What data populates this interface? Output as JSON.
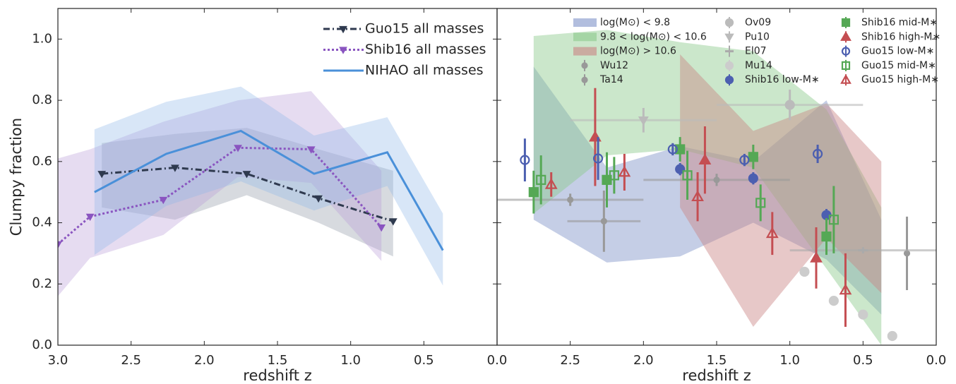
{
  "chart_data": [
    {
      "type": "line",
      "xlabel": "redshift z",
      "ylabel": "Clumpy fraction",
      "xlim": [
        3,
        0
      ],
      "ylim": [
        0,
        1.1
      ],
      "xticks": [
        {
          "value": 3,
          "label": "3.0"
        },
        {
          "value": 2.5,
          "label": "2.5"
        },
        {
          "value": 2,
          "label": "2.0"
        },
        {
          "value": 1.5,
          "label": "1.5"
        },
        {
          "value": 1,
          "label": "1.0"
        },
        {
          "value": 0.5,
          "label": "0.5"
        },
        {
          "value": 0,
          "label": "0.0"
        }
      ],
      "yticks": [
        {
          "value": 0,
          "label": "0.0"
        },
        0.2,
        0.4,
        0.6,
        0.8,
        {
          "value": 1,
          "label": "1.0"
        }
      ],
      "series": [
        {
          "name": "Guo15 all masses",
          "color": "#2f3a4f",
          "band_color": "#8b96a3",
          "marker": "v",
          "linestyle": "dashdot",
          "x": [
            2.7,
            2.2,
            1.71,
            1.22,
            0.71
          ],
          "values": [
            0.56,
            0.58,
            0.56,
            0.48,
            0.405
          ],
          "band_upper": [
            0.66,
            0.69,
            0.71,
            0.64,
            0.57
          ],
          "band_lower": [
            0.45,
            0.41,
            0.49,
            0.4,
            0.29
          ]
        },
        {
          "name": "Shib16 all masses",
          "color": "#8a55c0",
          "band_color": "#b79ad6",
          "marker": "v",
          "linestyle": "dotted",
          "x": [
            3.0,
            2.78,
            2.28,
            1.77,
            1.27,
            0.79
          ],
          "values": [
            0.33,
            0.42,
            0.475,
            0.645,
            0.64,
            0.385
          ],
          "band_upper": [
            0.61,
            0.64,
            0.73,
            0.8,
            0.83,
            0.57
          ],
          "band_lower": [
            0.16,
            0.285,
            0.36,
            0.55,
            0.53,
            0.275
          ]
        },
        {
          "name": "NIHAO all masses",
          "color": "#4a90d9",
          "band_color": "#8fb7e8",
          "marker": "none",
          "linestyle": "solid",
          "x": [
            2.75,
            2.26,
            1.75,
            1.25,
            0.75,
            0.37
          ],
          "values": [
            0.5,
            0.625,
            0.7,
            0.56,
            0.63,
            0.31
          ],
          "band_upper": [
            0.705,
            0.795,
            0.845,
            0.685,
            0.745,
            0.43
          ],
          "band_lower": [
            0.295,
            0.455,
            0.535,
            0.44,
            0.52,
            0.195
          ]
        }
      ]
    },
    {
      "type": "errorbar",
      "xlabel": "redshift z",
      "xlim": [
        3,
        0
      ],
      "ylim": [
        0,
        1.1
      ],
      "xticks": [
        {
          "value": 2.5,
          "label": "2.5"
        },
        {
          "value": 2,
          "label": "2.0"
        },
        {
          "value": 1.5,
          "label": "1.5"
        },
        {
          "value": 1,
          "label": "1.0"
        },
        {
          "value": 0.5,
          "label": "0.5"
        },
        {
          "value": 0,
          "label": "0.0"
        }
      ],
      "bands": [
        {
          "name": "log(M⊙) < 9.8",
          "color": "#7f92c8",
          "x": [
            2.75,
            2.25,
            1.75,
            1.25,
            0.75,
            0.375
          ],
          "upper": [
            0.91,
            0.58,
            0.65,
            0.6,
            0.8,
            0.41
          ],
          "lower": [
            0.41,
            0.27,
            0.29,
            0.4,
            0.28,
            0.1
          ]
        },
        {
          "name": "9.8 < log(M⊙) < 10.6",
          "color": "#8cc98c",
          "x": [
            2.75,
            2.25,
            1.75,
            1.25,
            0.75,
            0.375
          ],
          "upper": [
            1.01,
            1.03,
            0.99,
            0.96,
            0.77,
            0.45
          ],
          "lower": [
            0.43,
            0.62,
            0.64,
            0.58,
            0.25,
            0
          ]
        },
        {
          "name": "log(M⊙) > 10.6",
          "color": "#c98484",
          "x": [
            1.75,
            1.25,
            0.75,
            0.375
          ],
          "upper": [
            0.95,
            0.7,
            0.79,
            0.6
          ],
          "lower": [
            0.45,
            0.06,
            0.35,
            0.17
          ]
        }
      ],
      "series": [
        {
          "name": "Wu12",
          "color": "#999999",
          "marker": "plus",
          "filled": true,
          "x": [
            2.5,
            1.5
          ],
          "values": [
            0.475,
            0.54
          ],
          "yerr": [
            0.02,
            0.02
          ],
          "xerr": [
            0.5,
            0.5
          ]
        },
        {
          "name": "Ta14",
          "color": "#999999",
          "marker": "plus",
          "filled": true,
          "x": [
            2.27,
            0.2
          ],
          "values": [
            0.405,
            0.3
          ],
          "yerr": [
            0.1,
            0.12
          ],
          "xerr": [
            0.25,
            0
          ]
        },
        {
          "name": "Ov09",
          "color": "#bbbbbb",
          "marker": "o",
          "filled": true,
          "x": [
            1.0
          ],
          "values": [
            0.785
          ],
          "yerr": [
            0.05
          ],
          "xerr": [
            0.5
          ]
        },
        {
          "name": "Pu10",
          "color": "#bbbbbb",
          "marker": "v",
          "filled": true,
          "x": [
            2.0
          ],
          "values": [
            0.735
          ],
          "yerr": [
            0.04
          ],
          "xerr": [
            0.5
          ]
        },
        {
          "name": "El07",
          "color": "#aaaaaa",
          "marker": "dash",
          "filled": true,
          "x": [
            0.5
          ],
          "values": [
            0.31
          ],
          "yerr": [
            0.01
          ],
          "xerr": [
            0.5
          ]
        },
        {
          "name": "Mu14",
          "color": "#cccccc",
          "marker": "o",
          "filled": true,
          "x": [
            0.9,
            0.7,
            0.5,
            0.3
          ],
          "values": [
            0.24,
            0.145,
            0.1,
            0.03
          ]
        },
        {
          "name": "Shib16 low-M∗",
          "color": "#4c5fb0",
          "marker": "o",
          "filled": true,
          "x": [
            1.75,
            1.25,
            0.75
          ],
          "values": [
            0.575,
            0.545,
            0.425
          ],
          "yerr": [
            0.02,
            0.02,
            0.02
          ]
        },
        {
          "name": "Shib16 mid-M∗",
          "color": "#55a855",
          "marker": "s",
          "filled": true,
          "x": [
            2.75,
            2.25,
            1.75,
            1.25,
            0.75
          ],
          "values": [
            0.5,
            0.54,
            0.64,
            0.615,
            0.355
          ],
          "yerr": [
            0.07,
            0.09,
            0.04,
            0.04,
            0.06
          ]
        },
        {
          "name": "Shib16 high-M∗",
          "color": "#c44e52",
          "marker": "^",
          "filled": true,
          "x": [
            2.33,
            1.58,
            0.82
          ],
          "values": [
            0.68,
            0.605,
            0.285
          ],
          "yerr": [
            0.16,
            0.11,
            0.1
          ]
        },
        {
          "name": "Guo15 low-M∗",
          "color": "#4c5fb0",
          "marker": "o",
          "filled": false,
          "x": [
            2.81,
            2.31,
            1.8,
            1.31,
            0.81
          ],
          "values": [
            0.605,
            0.61,
            0.64,
            0.605,
            0.625
          ],
          "yerr": [
            0.07,
            0.07,
            0.02,
            0.02,
            0.03
          ]
        },
        {
          "name": "Guo15 mid-M∗",
          "color": "#55a855",
          "marker": "s",
          "filled": false,
          "x": [
            2.7,
            2.2,
            1.7,
            1.2,
            0.7
          ],
          "values": [
            0.54,
            0.555,
            0.555,
            0.465,
            0.41
          ],
          "yerr": [
            0.08,
            0.06,
            0.08,
            0.06,
            0.11
          ]
        },
        {
          "name": "Guo15 high-M∗",
          "color": "#c44e52",
          "marker": "^",
          "filled": false,
          "x": [
            2.63,
            2.13,
            1.63,
            1.12,
            0.62
          ],
          "values": [
            0.525,
            0.565,
            0.485,
            0.365,
            0.18
          ],
          "yerr": [
            0.04,
            0.06,
            0.08,
            0.07,
            0.12
          ]
        }
      ]
    }
  ]
}
